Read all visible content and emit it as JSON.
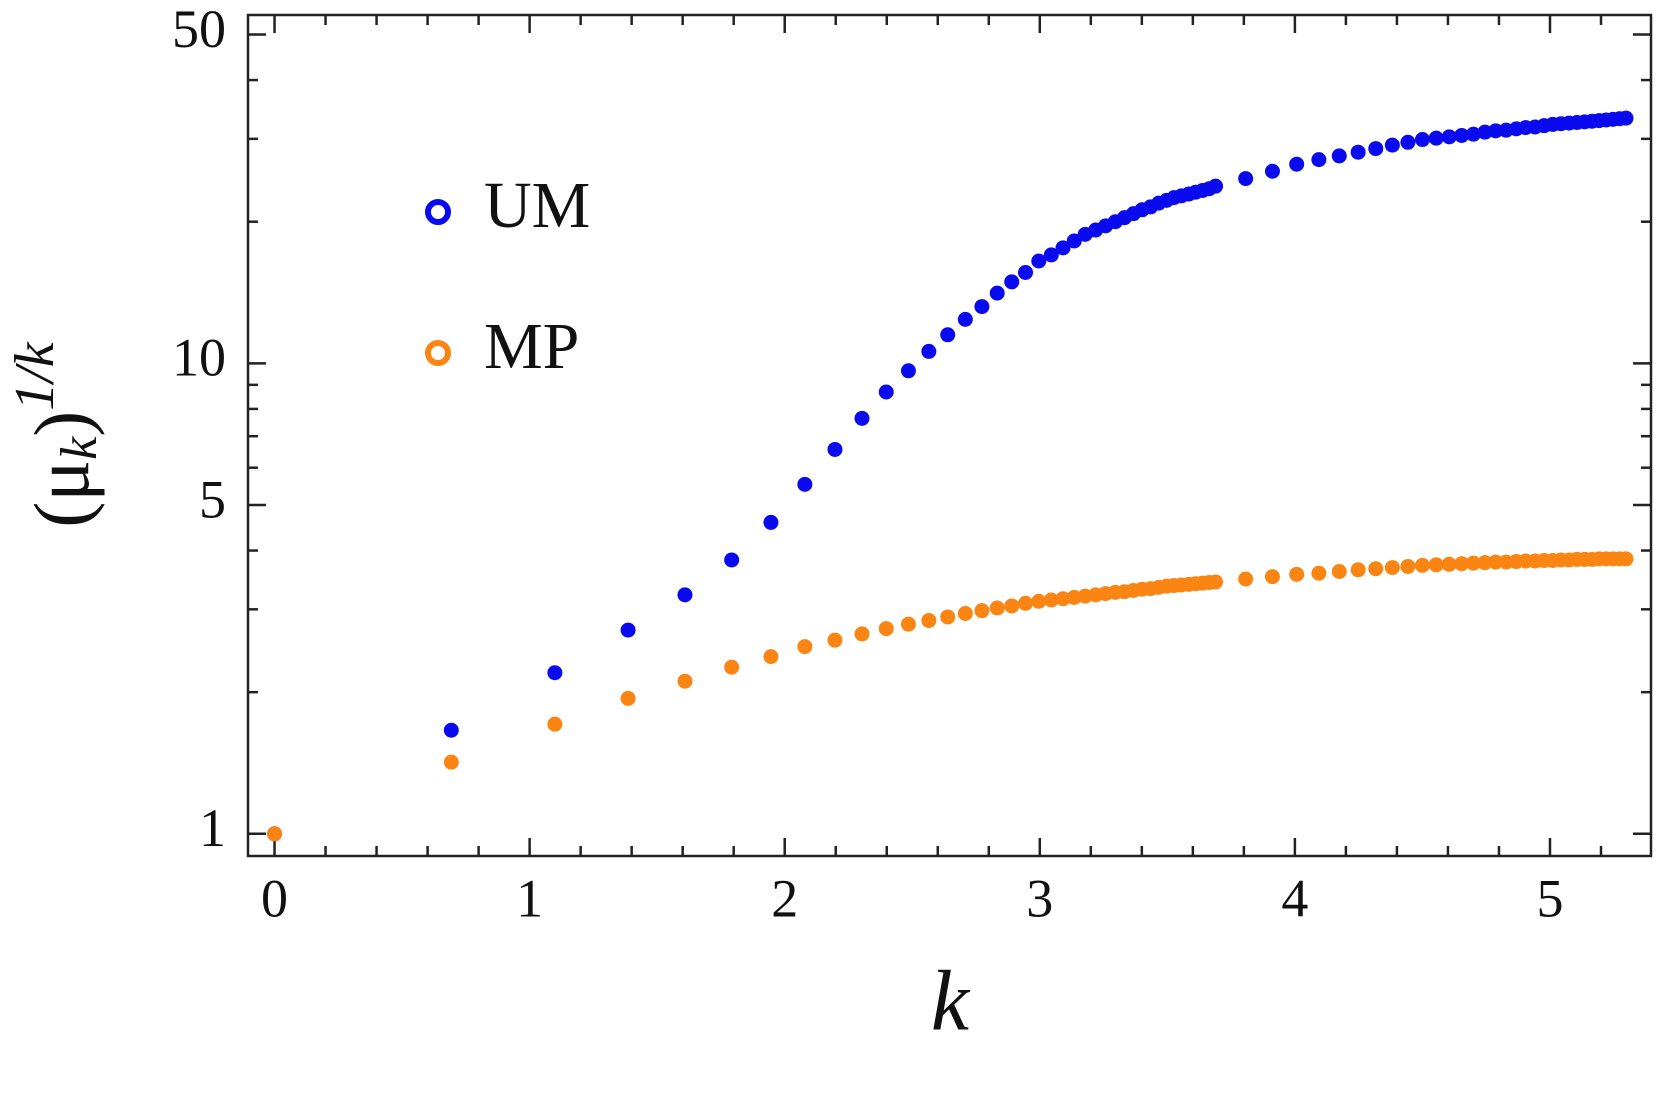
{
  "chart_data": {
    "type": "scatter",
    "xlabel": "k",
    "ylabel": [
      "(μ",
      "k",
      ")",
      "1/k"
    ],
    "x": [
      0,
      0.693,
      1.099,
      1.386,
      1.609,
      1.792,
      1.946,
      2.079,
      2.197,
      2.303,
      2.398,
      2.485,
      2.565,
      2.639,
      2.708,
      2.773,
      2.833,
      2.89,
      2.944,
      2.996,
      3.045,
      3.091,
      3.135,
      3.178,
      3.219,
      3.258,
      3.296,
      3.332,
      3.367,
      3.401,
      3.434,
      3.466,
      3.497,
      3.526,
      3.555,
      3.584,
      3.611,
      3.638,
      3.664,
      3.689,
      3.807,
      3.912,
      4.007,
      4.094,
      4.174,
      4.248,
      4.317,
      4.382,
      4.443,
      4.5,
      4.554,
      4.605,
      4.654,
      4.7,
      4.745,
      4.787,
      4.828,
      4.868,
      4.905,
      4.942,
      4.977,
      5.011,
      5.043,
      5.075,
      5.106,
      5.136,
      5.165,
      5.193,
      5.22,
      5.247,
      5.273,
      5.298
    ],
    "series": [
      {
        "name": "UM",
        "color": "#0a0aee",
        "values": [
          1,
          1.66,
          2.2,
          2.71,
          3.22,
          3.82,
          4.59,
          5.53,
          6.56,
          7.64,
          8.69,
          9.64,
          10.6,
          11.5,
          12.4,
          13.2,
          14.1,
          14.9,
          15.6,
          16.5,
          17.0,
          17.6,
          18.2,
          18.8,
          19.2,
          19.6,
          20.0,
          20.4,
          20.8,
          21.2,
          21.5,
          21.9,
          22.2,
          22.5,
          22.7,
          22.9,
          23.1,
          23.3,
          23.5,
          23.8,
          24.7,
          25.6,
          26.5,
          27.1,
          27.6,
          28.1,
          28.6,
          29.1,
          29.5,
          29.9,
          30.1,
          30.3,
          30.5,
          30.7,
          31.0,
          31.2,
          31.3,
          31.5,
          31.7,
          31.8,
          32.0,
          32.2,
          32.3,
          32.4,
          32.5,
          32.6,
          32.7,
          32.8,
          32.9,
          33.0,
          33.1,
          33.2
        ]
      },
      {
        "name": "MP",
        "color": "#fb8513",
        "values": [
          1,
          1.42,
          1.71,
          1.94,
          2.11,
          2.26,
          2.38,
          2.5,
          2.58,
          2.66,
          2.73,
          2.79,
          2.84,
          2.89,
          2.94,
          2.98,
          3.02,
          3.05,
          3.09,
          3.12,
          3.14,
          3.16,
          3.18,
          3.2,
          3.22,
          3.24,
          3.26,
          3.27,
          3.29,
          3.31,
          3.32,
          3.34,
          3.36,
          3.37,
          3.38,
          3.39,
          3.4,
          3.41,
          3.42,
          3.43,
          3.48,
          3.52,
          3.56,
          3.58,
          3.61,
          3.64,
          3.66,
          3.68,
          3.7,
          3.72,
          3.73,
          3.74,
          3.75,
          3.76,
          3.77,
          3.78,
          3.78,
          3.79,
          3.8,
          3.8,
          3.81,
          3.81,
          3.82,
          3.82,
          3.83,
          3.83,
          3.83,
          3.84,
          3.84,
          3.84,
          3.84,
          3.84
        ]
      }
    ],
    "xlim": [
      -0.104,
      5.396
    ],
    "ylim": [
      0.897,
      55
    ],
    "xticks": [
      0,
      1,
      2,
      3,
      4,
      5
    ],
    "yticks": [
      1,
      5,
      10,
      50
    ],
    "xminorticks": [
      0.2,
      0.4,
      0.6,
      0.8,
      1.2,
      1.4,
      1.6,
      1.8,
      2.2,
      2.4,
      2.6,
      2.8,
      3.2,
      3.4,
      3.6,
      3.8,
      4.2,
      4.4,
      4.6,
      4.8,
      5.2
    ],
    "yminorticks": [
      2,
      3,
      4,
      6,
      7,
      8,
      9,
      20,
      30,
      40
    ],
    "ylog": true,
    "legend": "upper left",
    "grid": false
  }
}
